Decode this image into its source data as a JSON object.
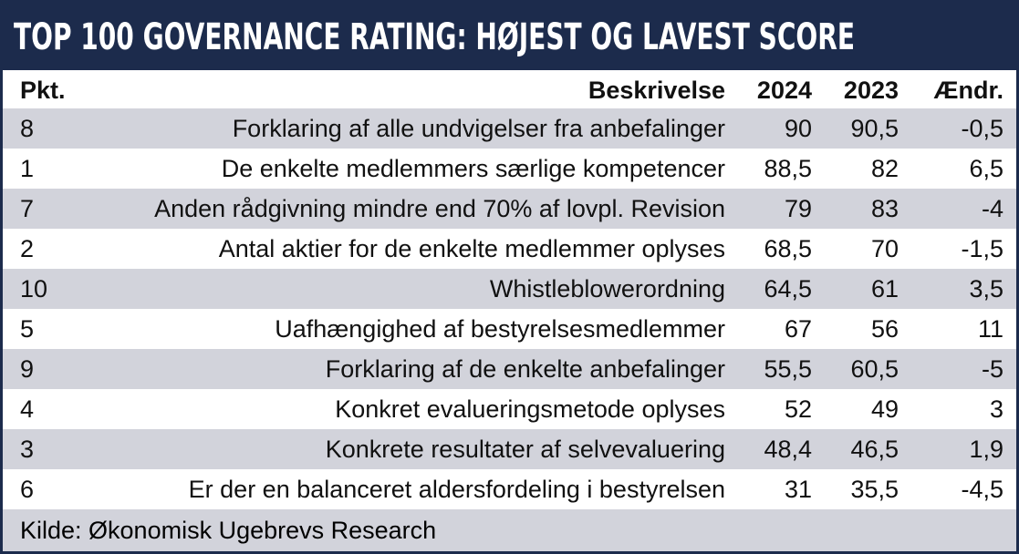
{
  "header": {
    "title": "TOP 100 GOVERNANCE RATING: HØJEST OG LAVEST SCORE"
  },
  "table": {
    "columns": [
      "Pkt.",
      "Beskrivelse",
      "2024",
      "2023",
      "Ændr."
    ],
    "rows": [
      [
        "8",
        "Forklaring af alle undvigelser fra anbefalinger",
        "90",
        "90,5",
        "-0,5"
      ],
      [
        "1",
        "De enkelte medlemmers særlige kompetencer",
        "88,5",
        "82",
        "6,5"
      ],
      [
        "7",
        "Anden rådgivning mindre end 70% af lovpl. Revision",
        "79",
        "83",
        "-4"
      ],
      [
        "2",
        "Antal aktier for de enkelte medlemmer oplyses",
        "68,5",
        "70",
        "-1,5"
      ],
      [
        "10",
        "Whistleblowerordning",
        "64,5",
        "61",
        "3,5"
      ],
      [
        "5",
        "Uafhængighed af bestyrelsesmedlemmer",
        "67",
        "56",
        "11"
      ],
      [
        "9",
        "Forklaring af de enkelte anbefalinger",
        "55,5",
        "60,5",
        "-5"
      ],
      [
        "4",
        "Konkret evalueringsmetode oplyses",
        "52",
        "49",
        "3"
      ],
      [
        "3",
        "Konkrete resultater af selvevaluering",
        "48,4",
        "46,5",
        "1,9"
      ],
      [
        "6",
        "Er der en balanceret aldersfordeling i bestyrelsen",
        "31",
        "35,5",
        "-4,5"
      ]
    ]
  },
  "footer": {
    "source": "Kilde: Økonomisk Ugebrevs Research"
  }
}
